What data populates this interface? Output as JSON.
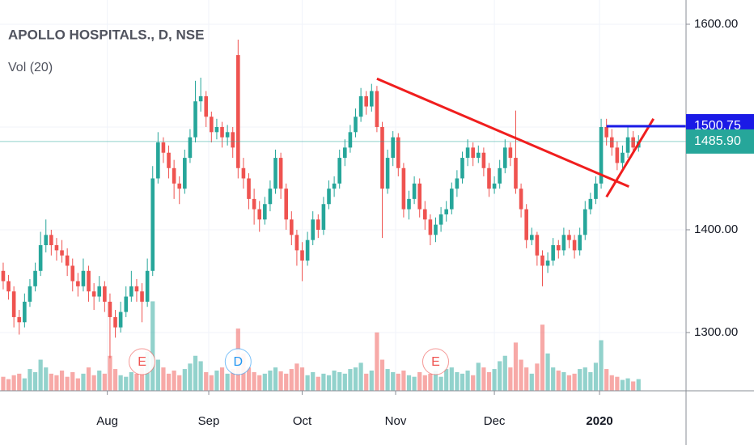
{
  "chart_data": {
    "type": "candlestick",
    "title": "APOLLO HOSPITALS., D, NSE",
    "subtitle": "Vol (20)",
    "up_color": "#26a69a",
    "down_color": "#ef5350",
    "xlim": [
      -0.6,
      127.9
    ],
    "ylim": [
      1243.3,
      1623.6
    ],
    "vlim": [
      0,
      130
    ],
    "yticks": [
      {
        "value": 1300,
        "label": "1300.00"
      },
      {
        "value": 1400,
        "label": "1400.00"
      },
      {
        "value": 1500,
        "label": "1500.00"
      },
      {
        "value": 1600,
        "label": "1600.00"
      }
    ],
    "xticks": [
      {
        "value": 19.5,
        "label": "Aug"
      },
      {
        "value": 38.5,
        "label": "Sep"
      },
      {
        "value": 56,
        "label": "Oct"
      },
      {
        "value": 73.5,
        "label": "Nov"
      },
      {
        "value": 92,
        "label": "Dec"
      },
      {
        "value": 111.7,
        "label": "2020"
      }
    ],
    "grid": true,
    "candles": [
      [
        1360,
        1368,
        1342,
        1350
      ],
      [
        1350,
        1356,
        1332,
        1340
      ],
      [
        1340,
        1345,
        1305,
        1315
      ],
      [
        1315,
        1322,
        1298,
        1310
      ],
      [
        1310,
        1338,
        1305,
        1330
      ],
      [
        1330,
        1352,
        1325,
        1345
      ],
      [
        1345,
        1368,
        1340,
        1360
      ],
      [
        1360,
        1398,
        1355,
        1385
      ],
      [
        1385,
        1410,
        1378,
        1395
      ],
      [
        1395,
        1400,
        1375,
        1385
      ],
      [
        1385,
        1392,
        1370,
        1380
      ],
      [
        1380,
        1390,
        1368,
        1375
      ],
      [
        1375,
        1382,
        1355,
        1365
      ],
      [
        1365,
        1372,
        1340,
        1350
      ],
      [
        1350,
        1358,
        1335,
        1345
      ],
      [
        1345,
        1372,
        1340,
        1360
      ],
      [
        1360,
        1365,
        1330,
        1340
      ],
      [
        1340,
        1348,
        1322,
        1335
      ],
      [
        1335,
        1355,
        1330,
        1345
      ],
      [
        1345,
        1350,
        1320,
        1330
      ],
      [
        1330,
        1338,
        1275,
        1315
      ],
      [
        1315,
        1322,
        1295,
        1305
      ],
      [
        1305,
        1330,
        1300,
        1320
      ],
      [
        1320,
        1345,
        1315,
        1335
      ],
      [
        1335,
        1360,
        1330,
        1345
      ],
      [
        1345,
        1352,
        1330,
        1340
      ],
      [
        1340,
        1348,
        1310,
        1330
      ],
      [
        1330,
        1372,
        1325,
        1360
      ],
      [
        1360,
        1462,
        1355,
        1450
      ],
      [
        1450,
        1495,
        1445,
        1485
      ],
      [
        1485,
        1490,
        1465,
        1475
      ],
      [
        1475,
        1482,
        1450,
        1460
      ],
      [
        1460,
        1468,
        1430,
        1445
      ],
      [
        1445,
        1452,
        1425,
        1440
      ],
      [
        1440,
        1478,
        1435,
        1470
      ],
      [
        1470,
        1498,
        1465,
        1490
      ],
      [
        1490,
        1545,
        1485,
        1525
      ],
      [
        1525,
        1548,
        1515,
        1530
      ],
      [
        1530,
        1535,
        1500,
        1510
      ],
      [
        1510,
        1515,
        1485,
        1495
      ],
      [
        1495,
        1508,
        1488,
        1500
      ],
      [
        1500,
        1505,
        1480,
        1490
      ],
      [
        1490,
        1502,
        1482,
        1495
      ],
      [
        1495,
        1500,
        1470,
        1480
      ],
      [
        1570,
        1585,
        1450,
        1460
      ],
      [
        1460,
        1470,
        1440,
        1450
      ],
      [
        1450,
        1455,
        1420,
        1430
      ],
      [
        1430,
        1440,
        1405,
        1420
      ],
      [
        1420,
        1428,
        1398,
        1410
      ],
      [
        1410,
        1432,
        1405,
        1425
      ],
      [
        1425,
        1448,
        1418,
        1440
      ],
      [
        1440,
        1478,
        1435,
        1470
      ],
      [
        1470,
        1475,
        1430,
        1440
      ],
      [
        1440,
        1445,
        1400,
        1410
      ],
      [
        1410,
        1418,
        1385,
        1395
      ],
      [
        1395,
        1400,
        1365,
        1380
      ],
      [
        1380,
        1388,
        1350,
        1370
      ],
      [
        1370,
        1398,
        1365,
        1390
      ],
      [
        1390,
        1418,
        1385,
        1410
      ],
      [
        1410,
        1415,
        1392,
        1400
      ],
      [
        1400,
        1432,
        1395,
        1425
      ],
      [
        1425,
        1448,
        1420,
        1440
      ],
      [
        1440,
        1452,
        1432,
        1445
      ],
      [
        1445,
        1478,
        1440,
        1470
      ],
      [
        1470,
        1488,
        1462,
        1480
      ],
      [
        1480,
        1502,
        1475,
        1495
      ],
      [
        1495,
        1518,
        1490,
        1510
      ],
      [
        1510,
        1538,
        1505,
        1530
      ],
      [
        1530,
        1535,
        1512,
        1520
      ],
      [
        1520,
        1542,
        1515,
        1535
      ],
      [
        1535,
        1540,
        1495,
        1500
      ],
      [
        1500,
        1505,
        1392,
        1440
      ],
      [
        1440,
        1478,
        1435,
        1470
      ],
      [
        1470,
        1496,
        1462,
        1490
      ],
      [
        1490,
        1494,
        1452,
        1460
      ],
      [
        1460,
        1465,
        1412,
        1420
      ],
      [
        1420,
        1438,
        1410,
        1430
      ],
      [
        1430,
        1452,
        1425,
        1445
      ],
      [
        1445,
        1450,
        1412,
        1420
      ],
      [
        1420,
        1428,
        1400,
        1410
      ],
      [
        1410,
        1415,
        1385,
        1395
      ],
      [
        1395,
        1412,
        1388,
        1405
      ],
      [
        1405,
        1422,
        1398,
        1415
      ],
      [
        1415,
        1428,
        1408,
        1420
      ],
      [
        1420,
        1446,
        1415,
        1440
      ],
      [
        1440,
        1458,
        1432,
        1450
      ],
      [
        1450,
        1476,
        1445,
        1470
      ],
      [
        1470,
        1488,
        1462,
        1480
      ],
      [
        1480,
        1485,
        1462,
        1470
      ],
      [
        1470,
        1482,
        1465,
        1475
      ],
      [
        1475,
        1480,
        1452,
        1460
      ],
      [
        1460,
        1465,
        1432,
        1440
      ],
      [
        1440,
        1452,
        1435,
        1445
      ],
      [
        1445,
        1468,
        1440,
        1460
      ],
      [
        1460,
        1488,
        1455,
        1480
      ],
      [
        1480,
        1485,
        1462,
        1470
      ],
      [
        1470,
        1516,
        1435,
        1440
      ],
      [
        1440,
        1445,
        1412,
        1420
      ],
      [
        1420,
        1425,
        1382,
        1390
      ],
      [
        1390,
        1402,
        1385,
        1395
      ],
      [
        1395,
        1398,
        1365,
        1375
      ],
      [
        1375,
        1380,
        1345,
        1365
      ],
      [
        1365,
        1378,
        1358,
        1370
      ],
      [
        1370,
        1392,
        1365,
        1385
      ],
      [
        1385,
        1390,
        1372,
        1380
      ],
      [
        1380,
        1402,
        1375,
        1395
      ],
      [
        1395,
        1400,
        1382,
        1390
      ],
      [
        1390,
        1395,
        1372,
        1380
      ],
      [
        1380,
        1402,
        1375,
        1395
      ],
      [
        1395,
        1428,
        1390,
        1420
      ],
      [
        1420,
        1436,
        1415,
        1430
      ],
      [
        1430,
        1452,
        1425,
        1445
      ],
      [
        1445,
        1508,
        1440,
        1500
      ],
      [
        1500,
        1508,
        1482,
        1490
      ],
      [
        1490,
        1498,
        1472,
        1480
      ],
      [
        1480,
        1486,
        1458,
        1465
      ],
      [
        1465,
        1482,
        1460,
        1475
      ],
      [
        1475,
        1500,
        1470,
        1490
      ],
      [
        1490,
        1496,
        1474,
        1480
      ],
      [
        1480,
        1492,
        1476,
        1486
      ]
    ],
    "volumes": [
      18,
      15,
      20,
      22,
      16,
      28,
      24,
      40,
      30,
      22,
      20,
      26,
      18,
      24,
      16,
      22,
      30,
      20,
      26,
      22,
      45,
      28,
      20,
      18,
      24,
      22,
      30,
      50,
      115,
      40,
      30,
      22,
      26,
      20,
      28,
      35,
      45,
      38,
      24,
      20,
      26,
      30,
      22,
      28,
      80,
      48,
      30,
      24,
      20,
      22,
      26,
      30,
      25,
      22,
      28,
      35,
      30,
      20,
      24,
      18,
      22,
      20,
      26,
      24,
      22,
      28,
      30,
      36,
      22,
      26,
      75,
      40,
      28,
      24,
      22,
      26,
      20,
      18,
      24,
      20,
      22,
      26,
      18,
      28,
      30,
      24,
      22,
      26,
      20,
      36,
      30,
      24,
      28,
      38,
      45,
      30,
      62,
      40,
      30,
      22,
      35,
      85,
      48,
      30,
      26,
      24,
      20,
      22,
      28,
      30,
      24,
      36,
      65,
      28,
      20,
      18,
      14,
      16,
      12,
      15
    ],
    "events": [
      {
        "label": "E",
        "index": 26,
        "color": "#ef5350"
      },
      {
        "label": "D",
        "index": 44,
        "color": "#2196f3"
      },
      {
        "label": "E",
        "index": 81,
        "color": "#ef5350"
      }
    ],
    "trendlines": [
      {
        "from": [
          70,
          1547
        ],
        "to": [
          117.2,
          1442
        ],
        "color": "#f01e1e"
      },
      {
        "from": [
          113,
          1432
        ],
        "to": [
          121.8,
          1508
        ],
        "color": "#f01e1e"
      },
      {
        "from": [
          113,
          1500.75
        ],
        "to": [
          128,
          1500.75
        ],
        "color": "#1a1ae6"
      }
    ],
    "price_labels": [
      {
        "value": 1500.75,
        "color": "#1a1ae6"
      },
      {
        "value": 1485.9,
        "label": "1485.90",
        "color": "#26a69a"
      }
    ]
  }
}
